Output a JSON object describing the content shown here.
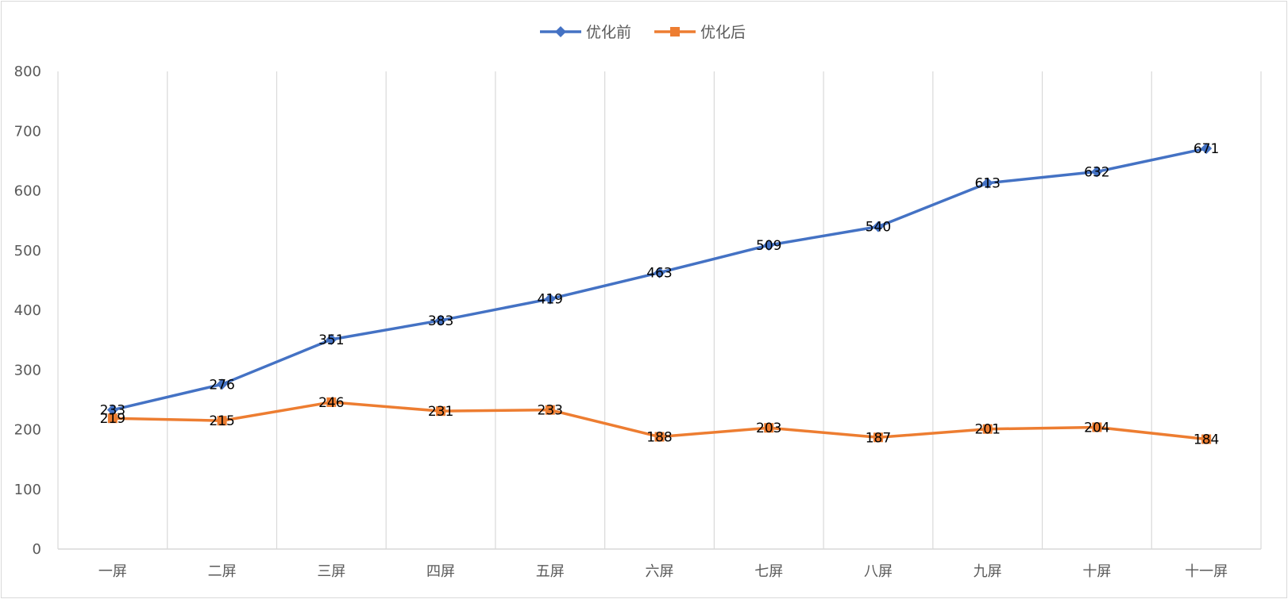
{
  "chart_data": {
    "type": "line",
    "title": "",
    "xlabel": "",
    "ylabel": "",
    "categories": [
      "一屏",
      "二屏",
      "三屏",
      "四屏",
      "五屏",
      "六屏",
      "七屏",
      "八屏",
      "九屏",
      "十屏",
      "十一屏"
    ],
    "series": [
      {
        "name": "优化前",
        "color": "#4472C4",
        "marker": "diamond",
        "values": [
          233,
          276,
          351,
          383,
          419,
          463,
          509,
          540,
          613,
          632,
          671
        ]
      },
      {
        "name": "优化后",
        "color": "#ED7D31",
        "marker": "square",
        "values": [
          219,
          215,
          246,
          231,
          233,
          188,
          203,
          187,
          201,
          204,
          184
        ]
      }
    ],
    "ylim": [
      0,
      800
    ],
    "yticks": [
      0,
      100,
      200,
      300,
      400,
      500,
      600,
      700,
      800
    ],
    "grid": "vertical",
    "legend": "top-center",
    "data_labels": true
  }
}
